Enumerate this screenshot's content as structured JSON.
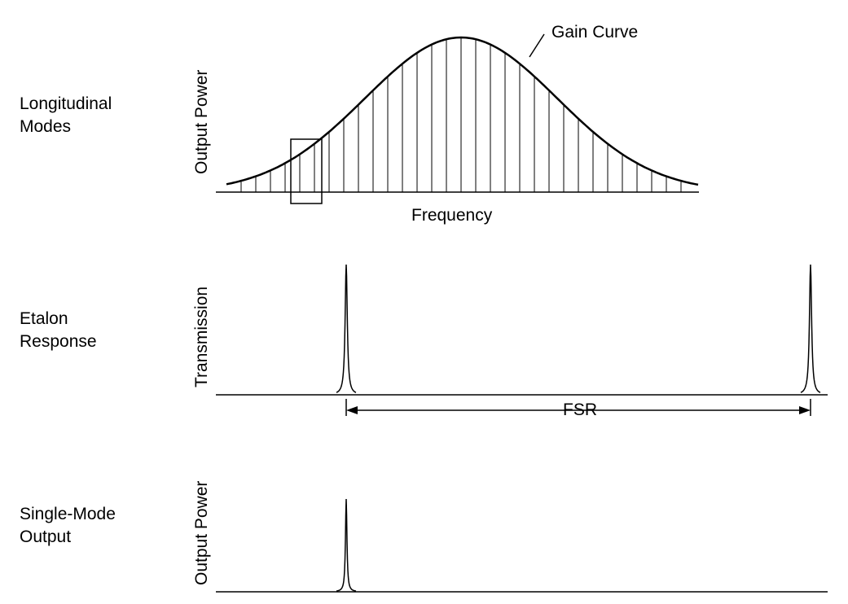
{
  "panels": {
    "longitudinal": {
      "label_line1": "Longitudinal",
      "label_line2": "Modes",
      "ylabel": "Output Power",
      "xlabel": "Frequency",
      "curve_label": "Gain Curve"
    },
    "etalon": {
      "label_line1": "Etalon",
      "label_line2": "Response",
      "ylabel": "Transmission",
      "span_label": "FSR"
    },
    "single_mode": {
      "label_line1": "Single-Mode",
      "label_line2": "Output",
      "ylabel": "Output Power"
    }
  }
}
